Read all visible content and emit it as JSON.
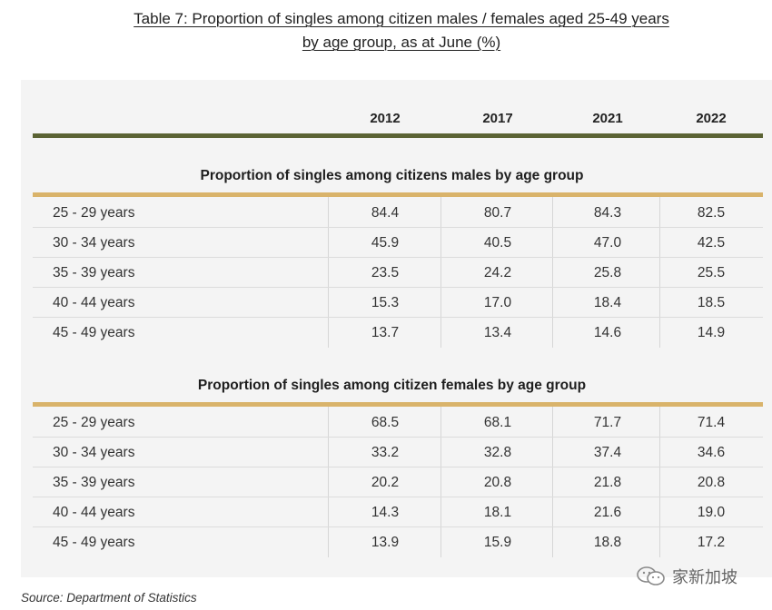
{
  "title_line1": "Table 7: Proportion of singles among citizen males / females aged 25-49 years",
  "title_line2": "by age group, as at June (%)",
  "columns": [
    "2012",
    "2017",
    "2021",
    "2022"
  ],
  "sections": [
    {
      "heading": "Proportion of singles among citizens males by age group",
      "rows": [
        {
          "label": "25 - 29 years",
          "values": [
            "84.4",
            "80.7",
            "84.3",
            "82.5"
          ]
        },
        {
          "label": "30 - 34 years",
          "values": [
            "45.9",
            "40.5",
            "47.0",
            "42.5"
          ]
        },
        {
          "label": "35 - 39 years",
          "values": [
            "23.5",
            "24.2",
            "25.8",
            "25.5"
          ]
        },
        {
          "label": "40 - 44 years",
          "values": [
            "15.3",
            "17.0",
            "18.4",
            "18.5"
          ]
        },
        {
          "label": "45 - 49 years",
          "values": [
            "13.7",
            "13.4",
            "14.6",
            "14.9"
          ]
        }
      ]
    },
    {
      "heading": "Proportion of singles among citizen females by age group",
      "rows": [
        {
          "label": "25 - 29 years",
          "values": [
            "68.5",
            "68.1",
            "71.7",
            "71.4"
          ]
        },
        {
          "label": "30 - 34 years",
          "values": [
            "33.2",
            "32.8",
            "37.4",
            "34.6"
          ]
        },
        {
          "label": "35 - 39 years",
          "values": [
            "20.2",
            "20.8",
            "21.8",
            "20.8"
          ]
        },
        {
          "label": "40 - 44 years",
          "values": [
            "14.3",
            "18.1",
            "21.6",
            "19.0"
          ]
        },
        {
          "label": "45 - 49 years",
          "values": [
            "13.9",
            "15.9",
            "18.8",
            "17.2"
          ]
        }
      ]
    }
  ],
  "source": "Source: Department of Statistics",
  "watermark": "家新加坡",
  "colors": {
    "header_rule": "#5b6334",
    "section_rule": "#d9b36a",
    "panel": "#f4f4f4"
  }
}
